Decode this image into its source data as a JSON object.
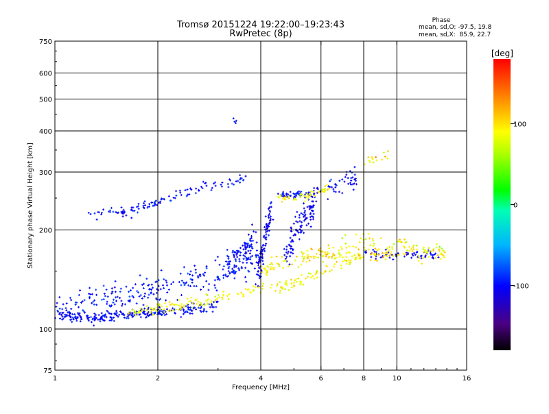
{
  "chart_data": {
    "type": "scatter",
    "title": "Tromsø 20151224 19:22:00–19:23:43",
    "subtitle": "RwPretec (8p)",
    "xlabel": "Frequency [MHz]",
    "ylabel": "Stationary phase Virtual Height [km]",
    "x_scale": "log",
    "y_scale": "log",
    "xlim": [
      1,
      16
    ],
    "ylim": [
      75,
      750
    ],
    "x_ticks": [
      1,
      2,
      4,
      6,
      8,
      10,
      16
    ],
    "x_tick_labels": [
      "1",
      "2",
      "4",
      "6",
      "8",
      "10",
      "16"
    ],
    "x_gridlines": [
      2,
      4,
      6,
      8,
      10
    ],
    "y_ticks": [
      75,
      100,
      200,
      300,
      400,
      500,
      600,
      750
    ],
    "y_tick_labels": [
      "75",
      "100",
      "200",
      "300",
      "400",
      "500",
      "600",
      "750"
    ],
    "y_gridlines": [
      100,
      200,
      300,
      400,
      500,
      600
    ],
    "grid": true,
    "phase_stats": {
      "heading": "Phase",
      "line_o": "mean, sd,O: -97.5, 19.8",
      "line_x": "mean, sd,X:  85.9, 22.7"
    },
    "colorbar": {
      "label": "[deg]",
      "range": [
        -180,
        180
      ],
      "ticks": [
        100,
        0,
        -100
      ],
      "tick_labels": [
        "100",
        "0",
        "-100"
      ]
    },
    "traces": [
      {
        "kind": "O",
        "phase_mean": -100,
        "phase_sd": 12,
        "x": [
          1.0,
          1.1,
          1.2,
          1.35,
          1.5,
          1.7,
          1.9,
          2.1,
          2.4,
          2.7,
          3.0
        ],
        "y": [
          112,
          109,
          108,
          108,
          110,
          111,
          112,
          113,
          114,
          116,
          118
        ],
        "count": 260,
        "spread": 0.025
      },
      {
        "kind": "O",
        "phase_mean": -95,
        "phase_sd": 14,
        "x": [
          1.0,
          1.2,
          1.4,
          1.6,
          1.8,
          2.0,
          2.3,
          2.6,
          3.0,
          3.3,
          3.6,
          4.0
        ],
        "y": [
          118,
          120,
          124,
          126,
          128,
          132,
          136,
          141,
          147,
          152,
          158,
          165
        ],
        "count": 260,
        "spread": 0.07
      },
      {
        "kind": "O",
        "phase_mean": -100,
        "phase_sd": 12,
        "x": [
          1.25,
          1.4,
          1.5,
          1.6,
          1.7,
          1.8,
          1.9,
          2.0,
          2.2,
          2.4,
          2.6,
          2.8,
          3.1,
          3.4,
          3.6
        ],
        "y": [
          225,
          226,
          230,
          225,
          228,
          235,
          238,
          242,
          250,
          260,
          268,
          272,
          275,
          282,
          290
        ],
        "count": 120,
        "spread": 0.025
      },
      {
        "kind": "O",
        "phase_mean": -100,
        "phase_sd": 12,
        "x": [
          3.2,
          3.4,
          3.6,
          3.7,
          3.8
        ],
        "y": [
          160,
          165,
          172,
          180,
          190
        ],
        "count": 80,
        "spread": 0.07
      },
      {
        "kind": "O",
        "phase_mean": -105,
        "phase_sd": 12,
        "x": [
          3.9,
          4.0,
          4.1,
          4.2,
          4.3
        ],
        "y": [
          140,
          160,
          185,
          210,
          240
        ],
        "count": 90,
        "spread": 0.05
      },
      {
        "kind": "O",
        "phase_mean": -105,
        "phase_sd": 12,
        "x": [
          4.7,
          4.9,
          5.0,
          5.2,
          5.4,
          5.6,
          5.8
        ],
        "y": [
          165,
          180,
          195,
          210,
          220,
          230,
          240
        ],
        "count": 110,
        "spread": 0.07
      },
      {
        "kind": "O",
        "phase_mean": -100,
        "phase_sd": 12,
        "x": [
          4.5,
          4.8,
          5.0,
          5.2,
          5.4,
          5.6,
          5.8,
          6.0
        ],
        "y": [
          256,
          256,
          255,
          256,
          255,
          257,
          260,
          266
        ],
        "count": 60,
        "spread": 0.015
      },
      {
        "kind": "O",
        "phase_mean": -100,
        "phase_sd": 12,
        "x": [
          6.3,
          6.6,
          7.0,
          7.3,
          7.6
        ],
        "y": [
          265,
          272,
          280,
          285,
          290
        ],
        "count": 40,
        "spread": 0.05
      },
      {
        "kind": "O",
        "phase_mean": -105,
        "phase_sd": 12,
        "x": [
          8.0,
          9.0,
          10.0,
          11.0,
          12.0,
          13.0
        ],
        "y": [
          170,
          168,
          168,
          168,
          168,
          169
        ],
        "count": 60,
        "spread": 0.02
      },
      {
        "kind": "O",
        "phase_mean": -100,
        "phase_sd": 12,
        "x": [
          3.3,
          3.4
        ],
        "y": [
          435,
          425
        ],
        "count": 4,
        "spread": 0.02
      },
      {
        "kind": "X",
        "phase_mean": 90,
        "phase_sd": 18,
        "x": [
          1.6,
          1.8,
          2.0,
          2.3,
          2.6,
          3.0,
          3.5,
          4.0,
          4.5,
          5.0,
          5.5,
          6.0,
          7.0,
          8.0
        ],
        "y": [
          112,
          114,
          116,
          118,
          120,
          124,
          130,
          133,
          134,
          137,
          142,
          150,
          160,
          167
        ],
        "count": 200,
        "spread": 0.03
      },
      {
        "kind": "X",
        "phase_mean": 95,
        "phase_sd": 20,
        "x": [
          4.0,
          4.5,
          5.0,
          5.5,
          6.0,
          6.5,
          7.0,
          8.0,
          9.0,
          10.0,
          12.0,
          14.0
        ],
        "y": [
          150,
          158,
          162,
          166,
          168,
          170,
          172,
          170,
          170,
          170,
          168,
          168
        ],
        "count": 180,
        "spread": 0.035
      },
      {
        "kind": "X",
        "phase_mean": 90,
        "phase_sd": 18,
        "x": [
          4.5,
          4.8,
          5.2,
          5.6,
          6.0,
          6.3
        ],
        "y": [
          248,
          250,
          252,
          255,
          262,
          270
        ],
        "count": 50,
        "spread": 0.02
      },
      {
        "kind": "X",
        "phase_mean": 85,
        "phase_sd": 25,
        "x": [
          7.0,
          8.0,
          9.0,
          10.0,
          11.0,
          12.0,
          13.0,
          14.0
        ],
        "y": [
          190,
          185,
          182,
          183,
          180,
          175,
          172,
          168
        ],
        "count": 50,
        "spread": 0.04
      },
      {
        "kind": "X",
        "phase_mean": 100,
        "phase_sd": 25,
        "x": [
          8.0,
          8.5,
          9.0,
          9.5
        ],
        "y": [
          325,
          330,
          335,
          340
        ],
        "count": 15,
        "spread": 0.03
      }
    ]
  }
}
